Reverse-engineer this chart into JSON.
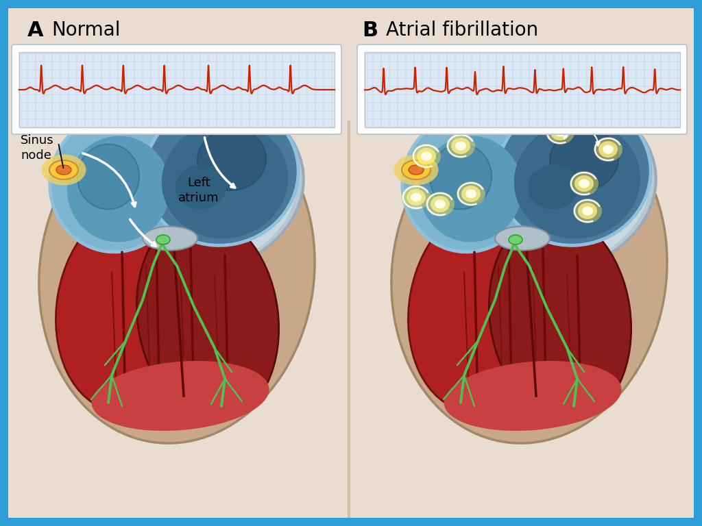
{
  "border_color": "#2E9ED6",
  "panel_bg": "#E8DDD0",
  "label_A": "A",
  "label_B": "B",
  "title_A": "Normal",
  "title_B": "Atrial fibrillation",
  "text_sinus": "Sinus\nnode",
  "text_left_atrium": "Left\natrium",
  "label_font_size": 22,
  "title_font_size": 20,
  "annotation_font_size": 13,
  "ecg_color": "#CC2200",
  "ecg_grid_color": "#AABBD0",
  "ecg_bg": "#DCE8F5",
  "heart_dark_red": "#8B1A1A",
  "heart_medium_red": "#C43030",
  "heart_light_red": "#D94040",
  "heart_pink": "#E87070",
  "atrium_blue_dark": "#4A7A9B",
  "atrium_blue_med": "#6090B0",
  "atrium_blue_light": "#7DB5D0",
  "atrium_rim": "#90C0DC",
  "vessel_tan": "#C8B090",
  "vessel_tan_dark": "#A89070",
  "body_tan": "#C8A888",
  "body_tan_dark": "#A08868",
  "sinus_orange": "#E87830",
  "sinus_yellow": "#F0D060",
  "conduction_green": "#50C050",
  "conduction_green_dark": "#308030",
  "divider_color": "#C8B898",
  "white": "#FFFFFF",
  "star_color": "#E83020",
  "glow_yellow": "#F8E050",
  "glow_white": "#FFFFF0",
  "silver_gray": "#C0C8D0",
  "dark_gray": "#505060"
}
